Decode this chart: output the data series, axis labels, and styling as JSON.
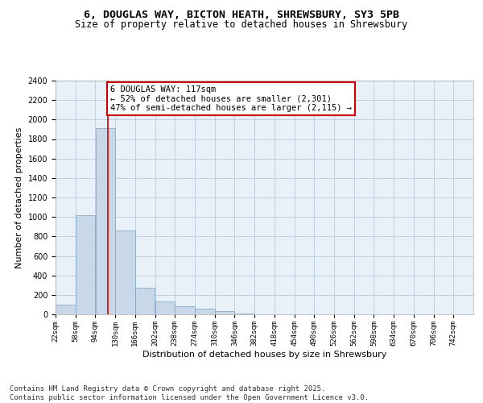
{
  "title_line1": "6, DOUGLAS WAY, BICTON HEATH, SHREWSBURY, SY3 5PB",
  "title_line2": "Size of property relative to detached houses in Shrewsbury",
  "xlabel": "Distribution of detached houses by size in Shrewsbury",
  "ylabel": "Number of detached properties",
  "bins": [
    "22sqm",
    "58sqm",
    "94sqm",
    "130sqm",
    "166sqm",
    "202sqm",
    "238sqm",
    "274sqm",
    "310sqm",
    "346sqm",
    "382sqm",
    "418sqm",
    "454sqm",
    "490sqm",
    "526sqm",
    "562sqm",
    "598sqm",
    "634sqm",
    "670sqm",
    "706sqm",
    "742sqm"
  ],
  "bin_edges": [
    22,
    58,
    94,
    130,
    166,
    202,
    238,
    274,
    310,
    346,
    382,
    418,
    454,
    490,
    526,
    562,
    598,
    634,
    670,
    706,
    742
  ],
  "bar_heights": [
    100,
    1020,
    1910,
    860,
    270,
    130,
    80,
    60,
    30,
    10,
    0,
    0,
    0,
    0,
    0,
    0,
    0,
    0,
    0,
    0
  ],
  "bar_color": "#c8d8e8",
  "bar_edge_color": "#7a9fc0",
  "annotation_box_text": "6 DOUGLAS WAY: 117sqm\n← 52% of detached houses are smaller (2,301)\n47% of semi-detached houses are larger (2,115) →",
  "vline_x": 117,
  "vline_color": "#cc0000",
  "annotation_box_color": "#ffffff",
  "annotation_box_edge_color": "#cc0000",
  "ylim": [
    0,
    2400
  ],
  "yticks": [
    0,
    200,
    400,
    600,
    800,
    1000,
    1200,
    1400,
    1600,
    1800,
    2000,
    2200,
    2400
  ],
  "grid_color": "#c0cfe0",
  "bg_color": "#e8f0f8",
  "footer_line1": "Contains HM Land Registry data © Crown copyright and database right 2025.",
  "footer_line2": "Contains public sector information licensed under the Open Government Licence v3.0.",
  "title_fontsize": 9.5,
  "subtitle_fontsize": 8.5,
  "axis_label_fontsize": 8,
  "tick_fontsize": 7,
  "annotation_fontsize": 7.5,
  "footer_fontsize": 6.5
}
